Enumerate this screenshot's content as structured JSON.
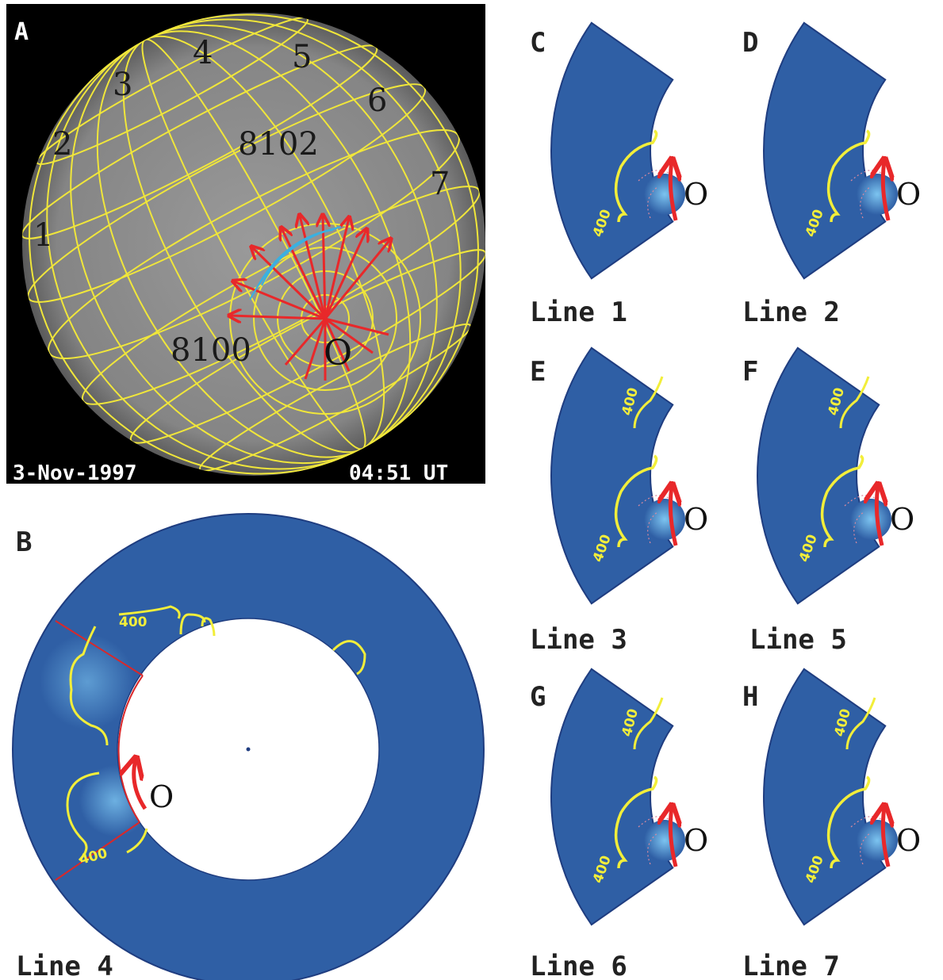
{
  "panel_a": {
    "label": "A",
    "meridians": [
      "1",
      "2",
      "3",
      "4",
      "5",
      "6",
      "7"
    ],
    "regions": [
      "8102",
      "8100"
    ],
    "origin": "O",
    "date": "3-Nov-1997",
    "time": "04:51 UT"
  },
  "panel_b": {
    "label": "B",
    "contours": [
      "400",
      "400"
    ],
    "origin": "O",
    "caption": "Line 4"
  },
  "panels": [
    {
      "label": "C",
      "contours": [
        "400"
      ],
      "origin": "O",
      "caption": "Line 1"
    },
    {
      "label": "D",
      "contours": [
        "400"
      ],
      "origin": "O",
      "caption": "Line 2"
    },
    {
      "label": "E",
      "contours": [
        "400",
        "400"
      ],
      "origin": "O",
      "caption": "Line 3"
    },
    {
      "label": "F",
      "contours": [
        "400",
        "400"
      ],
      "origin": "O",
      "caption": "Line 5"
    },
    {
      "label": "G",
      "contours": [
        "400",
        "400"
      ],
      "origin": "O",
      "caption": "Line 6"
    },
    {
      "label": "H",
      "contours": [
        "400",
        "400"
      ],
      "origin": "O",
      "caption": "Line 7"
    }
  ]
}
